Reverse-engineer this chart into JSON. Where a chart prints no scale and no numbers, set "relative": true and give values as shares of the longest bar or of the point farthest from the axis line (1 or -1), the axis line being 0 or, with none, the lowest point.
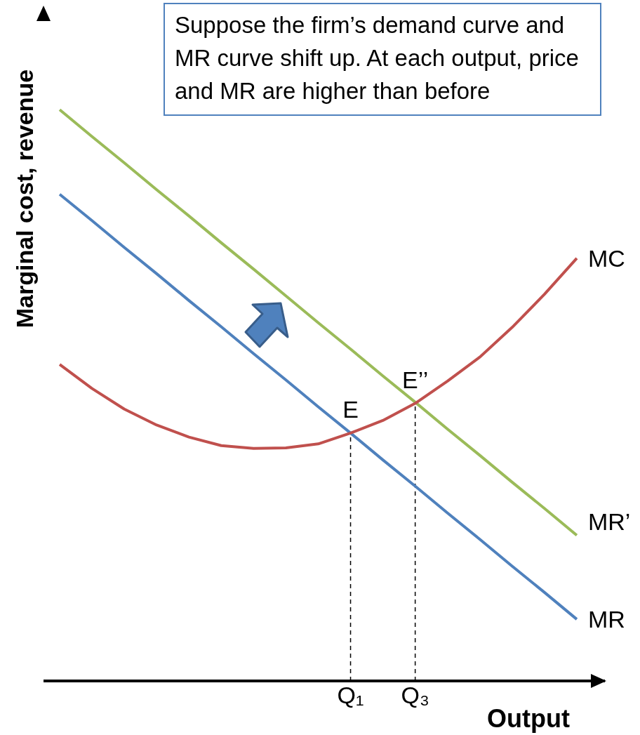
{
  "chart_data": {
    "type": "line",
    "relative": true,
    "xlabel": "Output",
    "ylabel": "Marginal cost, revenue",
    "categories": [
      null,
      null,
      null,
      null,
      null,
      null,
      null,
      null,
      null,
      "Q₁",
      null,
      "Q₃",
      null,
      null,
      null,
      null,
      null
    ],
    "series": [
      {
        "name": "MR’",
        "color": "#9bbb59",
        "values": [
          1.0,
          0.953,
          0.907,
          0.86,
          0.814,
          0.767,
          0.721,
          0.674,
          0.627,
          0.581,
          0.534,
          0.488,
          0.441,
          0.395,
          0.348,
          0.302,
          0.255
        ]
      },
      {
        "name": "MR",
        "color": "#4f81bd",
        "values": [
          0.852,
          0.806,
          0.759,
          0.713,
          0.666,
          0.62,
          0.573,
          0.527,
          0.48,
          0.434,
          0.387,
          0.341,
          0.294,
          0.248,
          0.201,
          0.155,
          0.108
        ]
      },
      {
        "name": "MC",
        "color": "#c0504d",
        "values": [
          0.554,
          0.512,
          0.476,
          0.448,
          0.427,
          0.412,
          0.407,
          0.408,
          0.415,
          0.434,
          0.456,
          0.486,
          0.525,
          0.567,
          0.619,
          0.677,
          0.74
        ]
      }
    ],
    "annotations": [
      "Suppose the firm’s demand curve and MR curve shift up. At each output, price and MR are higher than before",
      {
        "text": "E",
        "x": "Q₁",
        "y": 0.434
      },
      {
        "text": "E’’",
        "x": "Q₃",
        "y": 0.486
      }
    ],
    "ref_lines": [
      {
        "axis": "x",
        "value": "Q₁",
        "line_style": "dashed",
        "color": "#000000"
      },
      {
        "axis": "x",
        "value": "Q₃",
        "line_style": "dashed",
        "color": "#000000"
      }
    ],
    "legend": false,
    "grid": false,
    "marker": "none",
    "line_style": "solid"
  }
}
